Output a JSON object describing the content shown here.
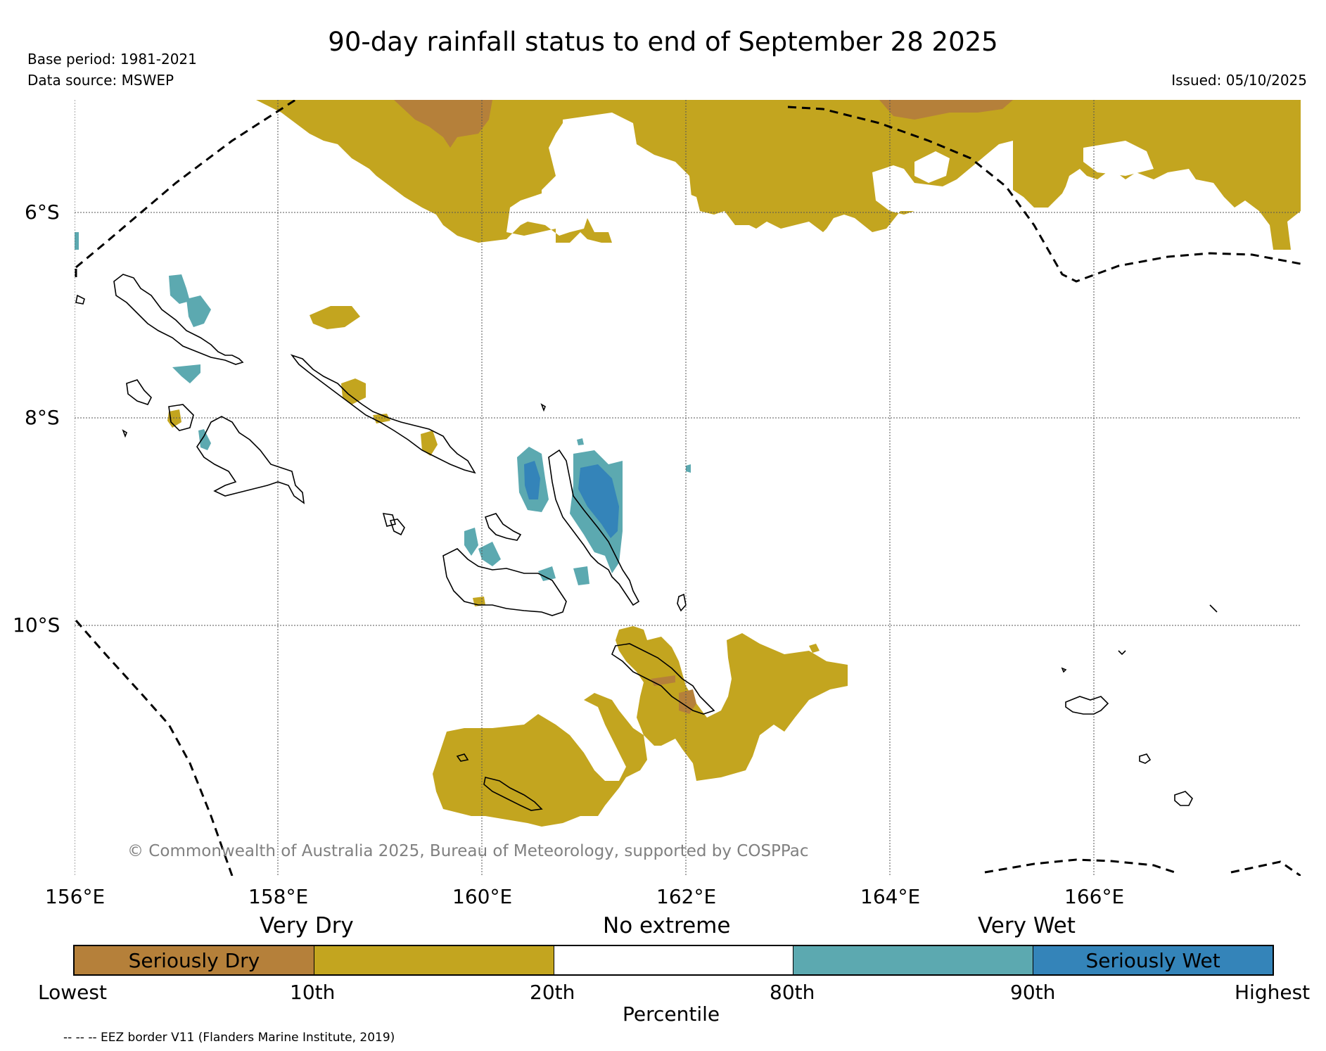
{
  "title": "90-day rainfall status to end of September 28 2025",
  "base_period": "Base period: 1981-2021",
  "data_source": "Data source: MSWEP",
  "issued": "Issued: 05/10/2025",
  "copyright": "© Commonwealth of Australia 2025, Bureau of Meteorology, supported by COSPPac",
  "map": {
    "lon_range": [
      156,
      168
    ],
    "lat_range": [
      -12.2,
      -4.9
    ],
    "lon_ticks": [
      "156°E",
      "158°E",
      "160°E",
      "162°E",
      "164°E",
      "166°E"
    ],
    "lat_ticks": [
      "6°S",
      "8°S",
      "10°S"
    ]
  },
  "legend": {
    "categories": [
      "Very Dry",
      "No extreme",
      "Very Wet"
    ],
    "segments": [
      {
        "label": "Seriously Dry",
        "color": "#b5803a"
      },
      {
        "label": "",
        "color": "#c3a51f"
      },
      {
        "label": "",
        "color": "#ffffff"
      },
      {
        "label": "",
        "color": "#5ca9b0"
      },
      {
        "label": "Seriously Wet",
        "color": "#3484b9"
      }
    ],
    "percentiles": [
      "Lowest",
      "10th",
      "20th",
      "80th",
      "90th",
      "Highest"
    ],
    "axis_label": "Percentile"
  },
  "footnote": "-- -- -- EEZ border V11 (Flanders Marine Institute, 2019)",
  "colors": {
    "seriously_dry": "#b5803a",
    "very_dry": "#c3a51f",
    "very_wet": "#5ca9b0",
    "seriously_wet": "#3484b9"
  }
}
